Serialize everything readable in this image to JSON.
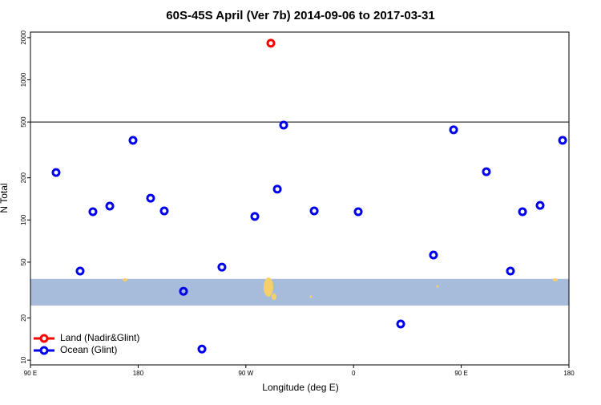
{
  "chart_data": {
    "type": "scatter",
    "title": "60S-45S April (Ver 7b)   2014-09-06 to 2017-03-31",
    "x_label": "Longitude (deg E)",
    "y_label": "N Total",
    "xlim": [
      90,
      540
    ],
    "xticks": [
      {
        "value": 90,
        "label": "90 E"
      },
      {
        "value": 180,
        "label": "180"
      },
      {
        "value": 270,
        "label": "90 W"
      },
      {
        "value": 360,
        "label": "0"
      },
      {
        "value": 450,
        "label": "90 E"
      },
      {
        "value": 540,
        "label": "180"
      }
    ],
    "ylim": [
      9.25,
      2190
    ],
    "y_scale": "log",
    "yticks": [
      10,
      20,
      50,
      100,
      200,
      500,
      1000,
      2000
    ],
    "hline": 500,
    "band": {
      "range": [
        24.5,
        38
      ],
      "color": "#a7bcdb"
    },
    "legend": "lower left",
    "series": [
      {
        "name": "Land (Nadir&Glint)",
        "color": "#ff0000",
        "x": [
          290.9
        ],
        "values": [
          1824
        ]
      },
      {
        "name": "Ocean (Glint)",
        "color": "#0000ee",
        "x": [
          111.4,
          131.5,
          142.2,
          156.3,
          175.7,
          190.4,
          201.8,
          217.9,
          233.3,
          250.0,
          277.5,
          296.3,
          301.6,
          327.1,
          363.9,
          399.4,
          426.8,
          443.6,
          471.0,
          491.1,
          501.2,
          515.9,
          534.7
        ],
        "values": [
          218,
          43.2,
          114.5,
          125.6,
          370,
          143,
          116,
          31,
          12.0,
          46.1,
          106,
          166,
          475,
          116,
          114.5,
          18.1,
          56.2,
          440,
          221,
          43.2,
          114.5,
          127,
          370
        ]
      }
    ]
  }
}
